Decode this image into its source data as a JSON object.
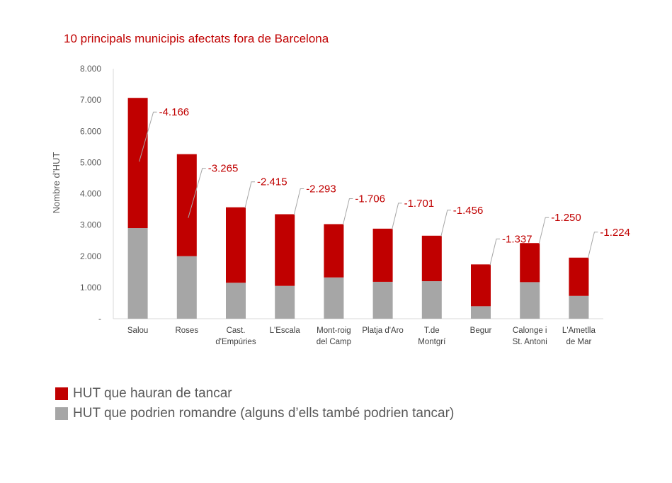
{
  "chart_data": {
    "type": "bar",
    "stacked": true,
    "title": "10 principals municipis afectats fora de Barcelona",
    "ylabel": "Nombre d’HUT",
    "ylim": [
      0,
      8000
    ],
    "yticks": [
      {
        "value": 0,
        "label": "-"
      },
      {
        "value": 1000,
        "label": "1.000"
      },
      {
        "value": 2000,
        "label": "2.000"
      },
      {
        "value": 3000,
        "label": "3.000"
      },
      {
        "value": 4000,
        "label": "4.000"
      },
      {
        "value": 5000,
        "label": "5.000"
      },
      {
        "value": 6000,
        "label": "6.000"
      },
      {
        "value": 7000,
        "label": "7.000"
      },
      {
        "value": 8000,
        "label": "8.000"
      }
    ],
    "categories": [
      [
        "Salou"
      ],
      [
        "Roses"
      ],
      [
        "Cast.",
        "d'Empúries"
      ],
      [
        "L'Escala"
      ],
      [
        "Mont-roig",
        "del Camp"
      ],
      [
        "Platja d'Aro"
      ],
      [
        "T.de",
        "Montgrí"
      ],
      [
        "Begur"
      ],
      [
        "Calonge i",
        "St. Antoni"
      ],
      [
        "L'Ametlla",
        "de Mar"
      ]
    ],
    "series": [
      {
        "name": "HUT que podrien romandre (alguns d’ells també podrien tancar)",
        "color": "#a6a6a6",
        "values": [
          2900,
          2000,
          1150,
          1050,
          1320,
          1180,
          1200,
          400,
          1170,
          730
        ]
      },
      {
        "name": "HUT que hauran de tancar",
        "color": "#c00000",
        "values": [
          4166,
          3265,
          2415,
          2293,
          1706,
          1701,
          1456,
          1337,
          1250,
          1224
        ]
      }
    ],
    "data_labels": [
      "-4.166",
      "-3.265",
      "-2.415",
      "-2.293",
      "-1.706",
      "-1.701",
      "-1.456",
      "-1.337",
      "-1.250",
      "-1.224"
    ],
    "legend_position": "bottom-left",
    "grid": false
  },
  "legend": {
    "items": [
      {
        "label": "HUT que hauran de tancar",
        "color": "#c00000"
      },
      {
        "label": "HUT que podrien romandre (alguns d’ells també podrien tancar)",
        "color": "#a6a6a6"
      }
    ]
  }
}
